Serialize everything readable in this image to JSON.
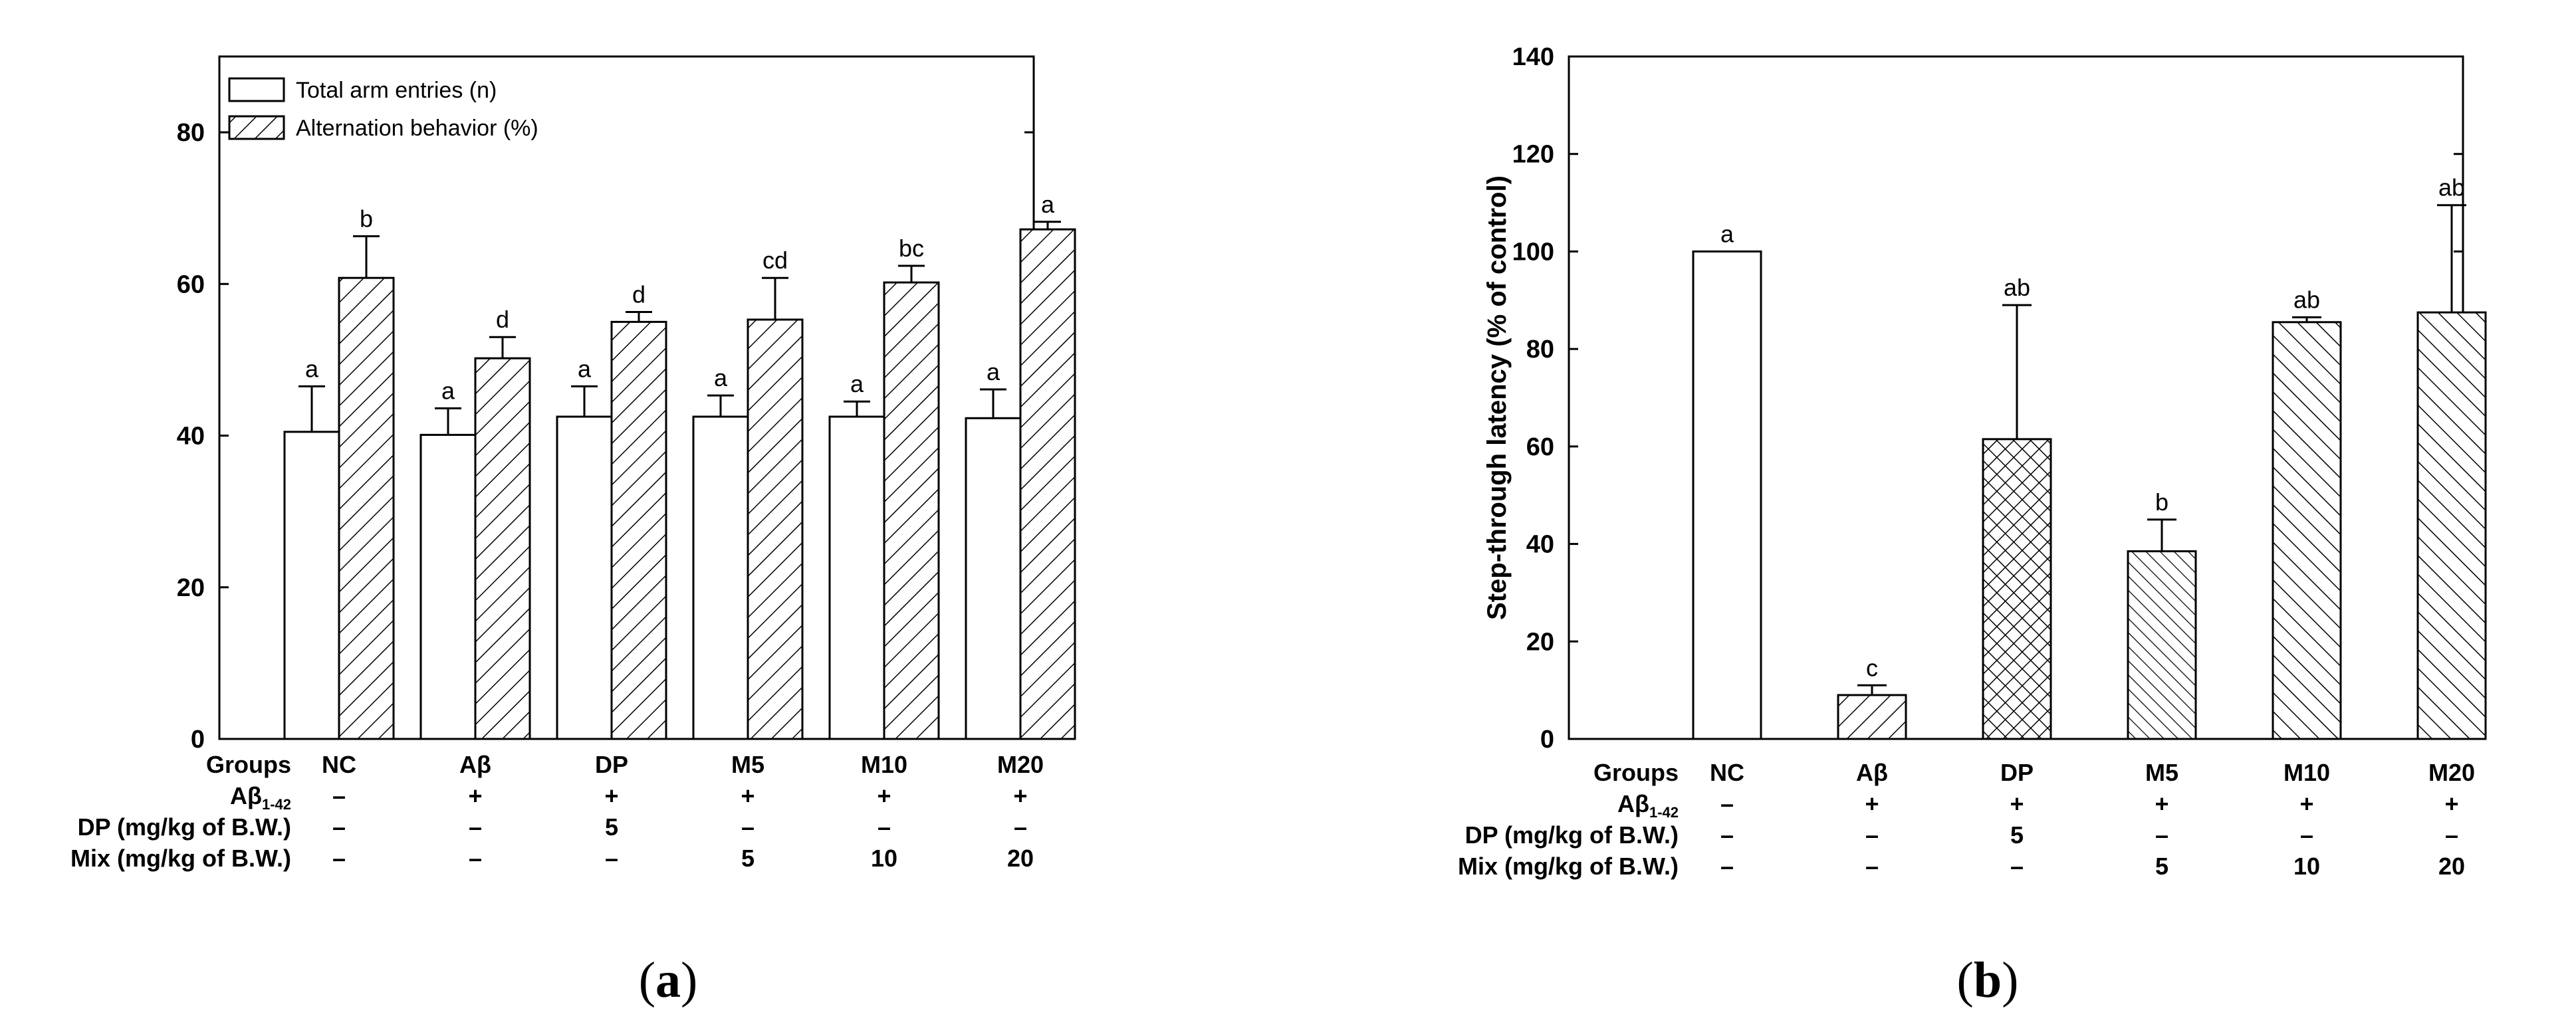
{
  "panels": [
    {
      "id": "a",
      "label_open": "(",
      "label_letter": "a",
      "label_close": ")"
    },
    {
      "id": "b",
      "label_open": "(",
      "label_letter": "b",
      "label_close": ")"
    }
  ],
  "chart_data": [
    {
      "panel": "a",
      "type": "bar",
      "title": "",
      "xlabel": "",
      "ylabel": "",
      "ylim": [
        0,
        90
      ],
      "yticks": [
        0,
        20,
        40,
        60,
        80
      ],
      "grid": false,
      "legend_position": "top-left",
      "categories": [
        "NC",
        "Aβ",
        "DP",
        "M5",
        "M10",
        "M20"
      ],
      "series": [
        {
          "name": "Total arm entries (n)",
          "pattern": "open",
          "values": [
            40.5,
            40.1,
            42.5,
            42.5,
            42.5,
            42.3
          ],
          "errors": [
            6.0,
            3.5,
            4.0,
            2.8,
            2.0,
            3.8
          ],
          "letters": [
            "a",
            "a",
            "a",
            "a",
            "a",
            "a"
          ]
        },
        {
          "name": "Alternation behavior (%)",
          "pattern": "diagonal-hatch",
          "values": [
            60.8,
            50.2,
            55.0,
            55.3,
            60.2,
            67.2
          ],
          "errors": [
            5.5,
            2.8,
            1.3,
            5.5,
            2.2,
            1.0
          ],
          "letters": [
            "b",
            "d",
            "d",
            "cd",
            "bc",
            "a"
          ]
        }
      ],
      "treatment_table": {
        "rows": [
          {
            "label": "Groups",
            "cells": [
              "NC",
              "Aβ",
              "DP",
              "M5",
              "M10",
              "M20"
            ]
          },
          {
            "label": "Aβ",
            "label_sub": "1-42",
            "cells": [
              "–",
              "+",
              "+",
              "+",
              "+",
              "+"
            ]
          },
          {
            "label": "DP (mg/kg of B.W.)",
            "cells": [
              "–",
              "–",
              "5",
              "–",
              "–",
              "–"
            ]
          },
          {
            "label": "Mix (mg/kg of B.W.)",
            "cells": [
              "–",
              "–",
              "–",
              "5",
              "10",
              "20"
            ]
          }
        ]
      }
    },
    {
      "panel": "b",
      "type": "bar",
      "title": "",
      "xlabel": "",
      "ylabel": "Step-through latency (% of control)",
      "ylim": [
        0,
        140
      ],
      "yticks": [
        0,
        20,
        40,
        60,
        80,
        100,
        120,
        140
      ],
      "grid": false,
      "categories": [
        "NC",
        "Aβ",
        "DP",
        "M5",
        "M10",
        "M20"
      ],
      "series": [
        {
          "name": "",
          "values": [
            100,
            9,
            61.5,
            38.5,
            85.5,
            87.5
          ],
          "errors": [
            0,
            2.0,
            27.5,
            6.5,
            1.0,
            22.0
          ],
          "letters": [
            "a",
            "c",
            "ab",
            "b",
            "ab",
            "ab"
          ],
          "patterns": [
            "open",
            "diagonal-right",
            "crosshatch",
            "diagonal-left-fine",
            "diagonal-left",
            "diagonal-left"
          ]
        }
      ],
      "treatment_table": {
        "rows": [
          {
            "label": "Groups",
            "cells": [
              "NC",
              "Aβ",
              "DP",
              "M5",
              "M10",
              "M20"
            ]
          },
          {
            "label": "Aβ",
            "label_sub": "1-42",
            "cells": [
              "–",
              "+",
              "+",
              "+",
              "+",
              "+"
            ]
          },
          {
            "label": "DP (mg/kg of B.W.)",
            "cells": [
              "–",
              "–",
              "5",
              "–",
              "–",
              "–"
            ]
          },
          {
            "label": "Mix (mg/kg of B.W.)",
            "cells": [
              "–",
              "–",
              "–",
              "5",
              "10",
              "20"
            ]
          }
        ]
      }
    }
  ]
}
